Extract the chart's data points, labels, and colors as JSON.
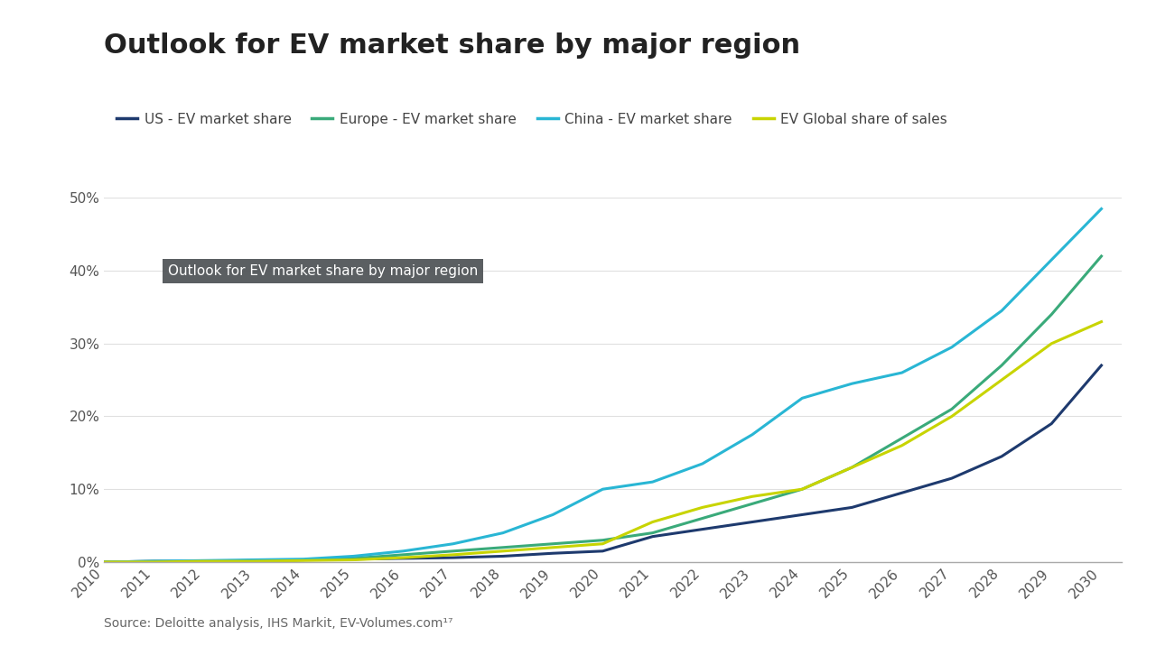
{
  "title": "Outlook for EV market share by major region",
  "source_text": "Source: Deloitte analysis, IHS Markit, EV-Volumes.com¹⁷",
  "watermark_text": "Outlook for EV market share by major region",
  "background_color": "#ffffff",
  "years": [
    2010,
    2011,
    2012,
    2013,
    2014,
    2015,
    2016,
    2017,
    2018,
    2019,
    2020,
    2021,
    2022,
    2023,
    2024,
    2025,
    2026,
    2027,
    2028,
    2029,
    2030
  ],
  "series": {
    "US": {
      "label": "US - EV market share",
      "color": "#1e3a6e",
      "values": [
        0.0,
        0.1,
        0.1,
        0.2,
        0.3,
        0.4,
        0.5,
        0.6,
        0.8,
        1.2,
        1.5,
        3.5,
        4.5,
        5.5,
        6.5,
        7.5,
        9.5,
        11.5,
        14.5,
        19.0,
        27.0
      ]
    },
    "Europe": {
      "label": "Europe - EV market share",
      "color": "#3aaa7a",
      "values": [
        0.0,
        0.1,
        0.1,
        0.2,
        0.3,
        0.5,
        1.0,
        1.5,
        2.0,
        2.5,
        3.0,
        4.0,
        6.0,
        8.0,
        10.0,
        13.0,
        17.0,
        21.0,
        27.0,
        34.0,
        42.0
      ]
    },
    "China": {
      "label": "China - EV market share",
      "color": "#29b6d4",
      "values": [
        0.0,
        0.1,
        0.2,
        0.3,
        0.4,
        0.8,
        1.5,
        2.5,
        4.0,
        6.5,
        10.0,
        11.0,
        13.5,
        17.5,
        22.5,
        24.5,
        26.0,
        29.5,
        34.5,
        41.5,
        48.5
      ]
    },
    "Global": {
      "label": "EV Global share of sales",
      "color": "#c8d400",
      "values": [
        0.0,
        0.0,
        0.1,
        0.1,
        0.2,
        0.3,
        0.6,
        1.0,
        1.5,
        2.0,
        2.5,
        5.5,
        7.5,
        9.0,
        10.0,
        13.0,
        16.0,
        20.0,
        25.0,
        30.0,
        33.0
      ]
    }
  },
  "ylim": [
    0,
    55
  ],
  "yticks": [
    0,
    10,
    20,
    30,
    40,
    50
  ],
  "ytick_labels": [
    "0%",
    "10%",
    "20%",
    "30%",
    "40%",
    "50%"
  ],
  "title_fontsize": 22,
  "legend_fontsize": 11,
  "tick_fontsize": 11,
  "source_fontsize": 10,
  "line_width": 2.2
}
